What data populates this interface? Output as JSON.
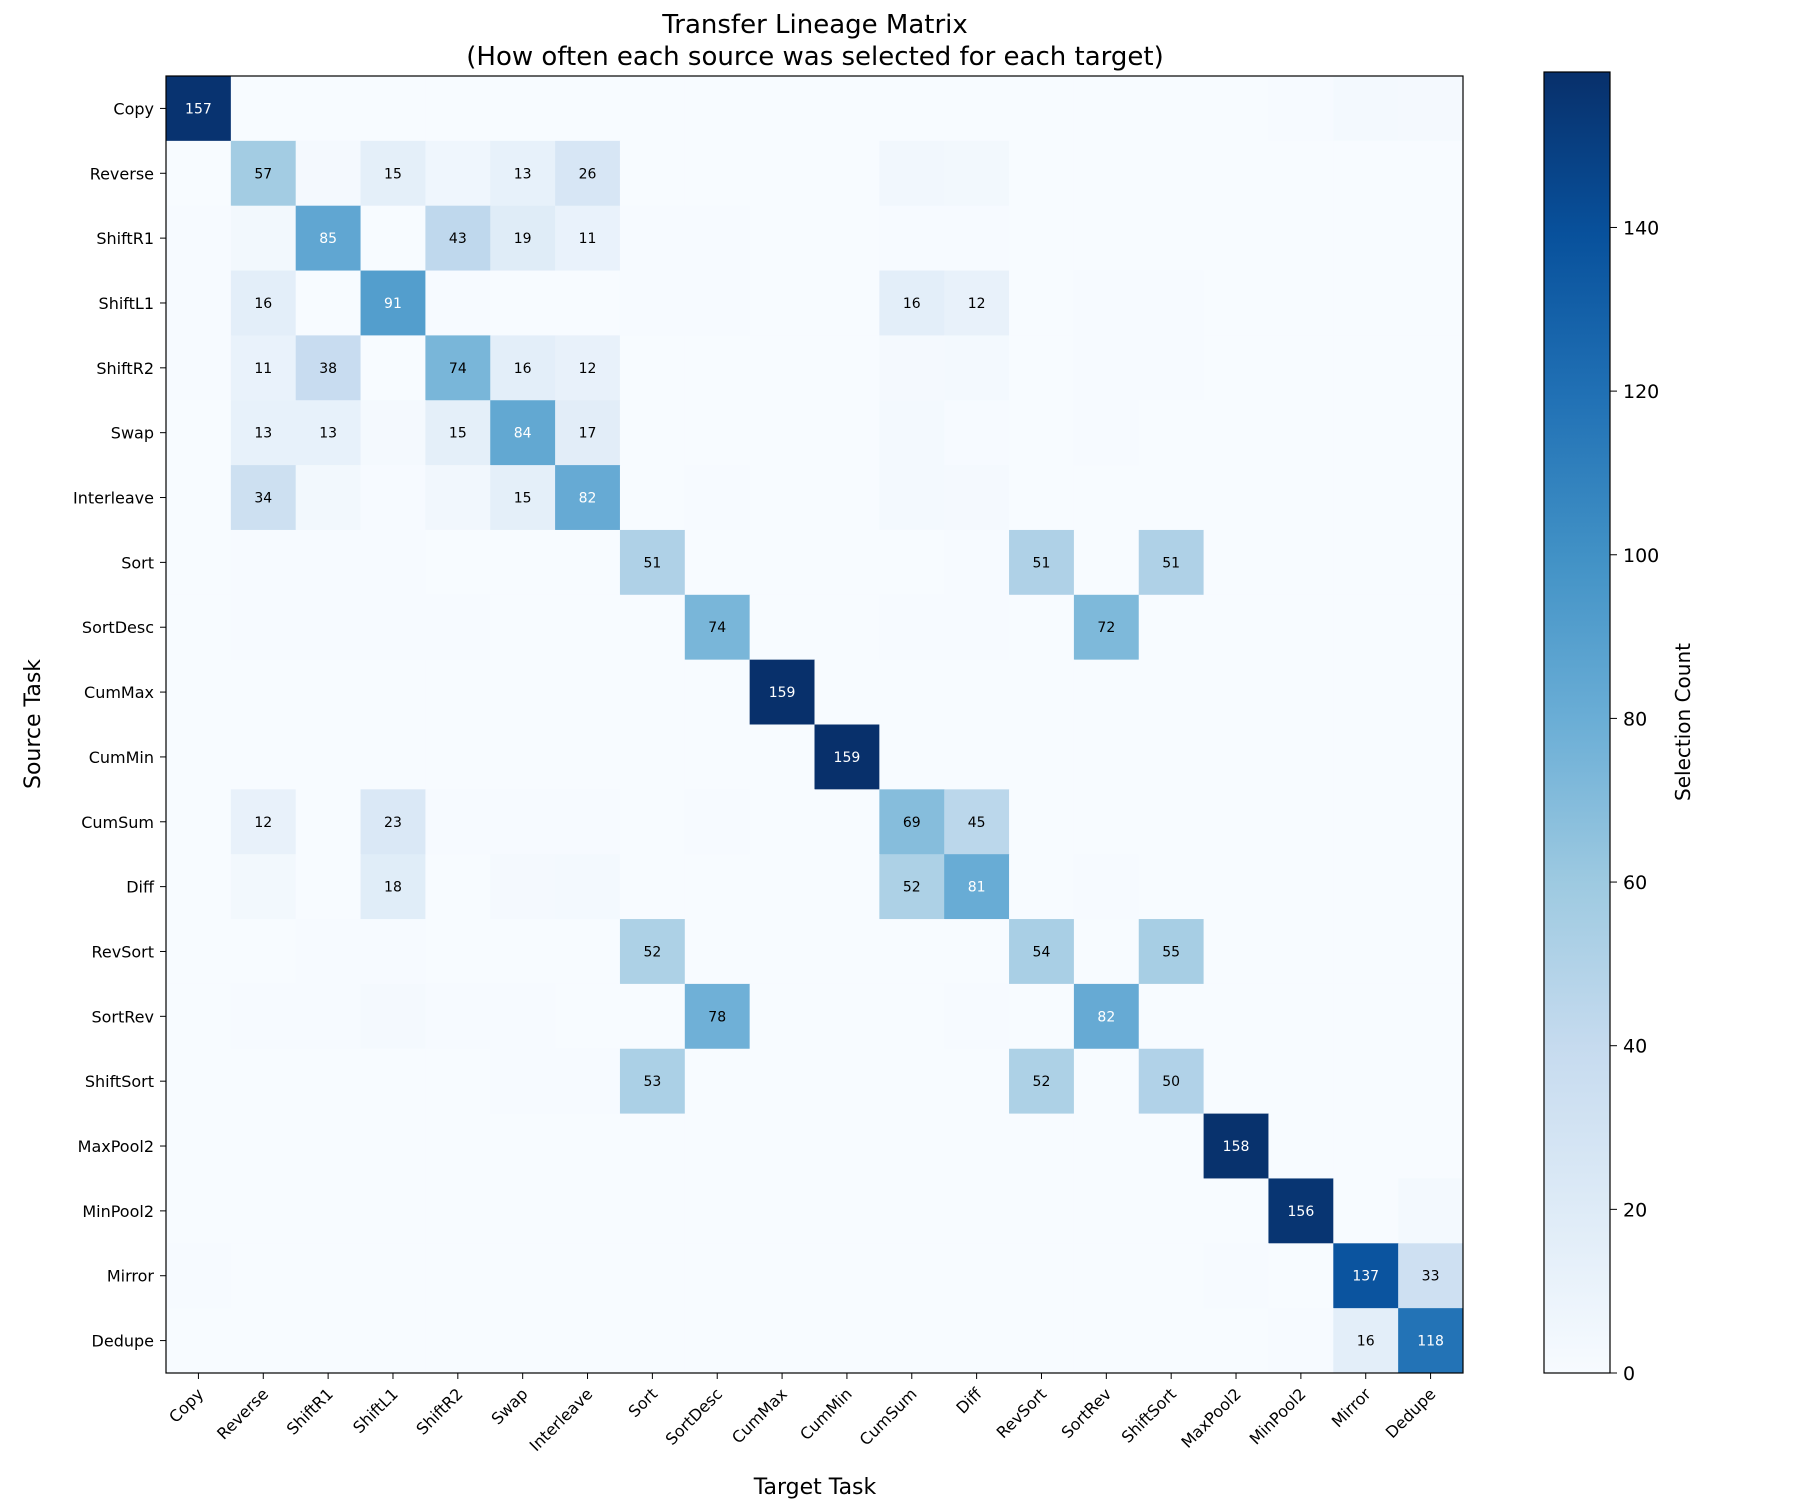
{
  "chart_data": {
    "type": "heatmap",
    "title": "Transfer Lineage Matrix",
    "subtitle": "(How often each source was selected for each target)",
    "xlabel": "Target Task",
    "ylabel": "Source Task",
    "colorbar_label": "Selection Count",
    "colormap": "Blues",
    "color_range": [
      0,
      159
    ],
    "colorbar_ticks": [
      0,
      20,
      40,
      60,
      80,
      100,
      120,
      140
    ],
    "annotation_min": 10,
    "x_categories": [
      "Copy",
      "Reverse",
      "ShiftR1",
      "ShiftL1",
      "ShiftR2",
      "Swap",
      "Interleave",
      "Sort",
      "SortDesc",
      "CumMax",
      "CumMin",
      "CumSum",
      "Diff",
      "RevSort",
      "SortRev",
      "ShiftSort",
      "MaxPool2",
      "MinPool2",
      "Mirror",
      "Dedupe"
    ],
    "y_categories": [
      "Copy",
      "Reverse",
      "ShiftR1",
      "ShiftL1",
      "ShiftR2",
      "Swap",
      "Interleave",
      "Sort",
      "SortDesc",
      "CumMax",
      "CumMin",
      "CumSum",
      "Diff",
      "RevSort",
      "SortRev",
      "ShiftSort",
      "MaxPool2",
      "MinPool2",
      "Mirror",
      "Dedupe"
    ],
    "values": [
      [
        157,
        0,
        0,
        0,
        0,
        0,
        0,
        0,
        0,
        0,
        0,
        0,
        0,
        0,
        0,
        0,
        0,
        1,
        3,
        2
      ],
      [
        0,
        57,
        2,
        15,
        6,
        13,
        26,
        0,
        0,
        0,
        0,
        5,
        4,
        0,
        0,
        0,
        0,
        0,
        0,
        0
      ],
      [
        1,
        4,
        85,
        0,
        43,
        19,
        11,
        1,
        1,
        0,
        0,
        1,
        1,
        0,
        0,
        0,
        0,
        0,
        0,
        0
      ],
      [
        1,
        16,
        0,
        91,
        1,
        0,
        0,
        1,
        1,
        0,
        0,
        16,
        12,
        0,
        1,
        1,
        0,
        0,
        0,
        0
      ],
      [
        1,
        11,
        38,
        0,
        74,
        16,
        12,
        0,
        0,
        0,
        0,
        2,
        3,
        0,
        1,
        1,
        0,
        0,
        0,
        0
      ],
      [
        0,
        13,
        13,
        2,
        15,
        84,
        17,
        0,
        0,
        0,
        0,
        3,
        1,
        0,
        1,
        0,
        0,
        0,
        0,
        0
      ],
      [
        0,
        34,
        4,
        1,
        5,
        15,
        82,
        0,
        1,
        0,
        0,
        3,
        2,
        0,
        0,
        0,
        0,
        0,
        0,
        0
      ],
      [
        0,
        1,
        1,
        1,
        0,
        0,
        0,
        51,
        0,
        0,
        0,
        0,
        1,
        51,
        0,
        51,
        0,
        0,
        0,
        0
      ],
      [
        0,
        1,
        1,
        1,
        1,
        0,
        0,
        0,
        74,
        0,
        0,
        1,
        1,
        0,
        72,
        0,
        0,
        0,
        0,
        0
      ],
      [
        0,
        0,
        0,
        0,
        0,
        0,
        0,
        0,
        0,
        159,
        0,
        0,
        0,
        0,
        0,
        0,
        0,
        0,
        0,
        0
      ],
      [
        0,
        0,
        0,
        0,
        0,
        0,
        0,
        0,
        0,
        0,
        159,
        0,
        0,
        0,
        0,
        0,
        0,
        0,
        0,
        0
      ],
      [
        0,
        12,
        0,
        23,
        1,
        1,
        1,
        0,
        1,
        0,
        0,
        69,
        45,
        0,
        0,
        0,
        0,
        0,
        0,
        0
      ],
      [
        0,
        4,
        0,
        18,
        0,
        2,
        3,
        0,
        0,
        0,
        0,
        52,
        81,
        0,
        1,
        0,
        0,
        0,
        0,
        0
      ],
      [
        0,
        0,
        1,
        1,
        0,
        0,
        0,
        52,
        0,
        0,
        0,
        0,
        0,
        54,
        0,
        55,
        0,
        0,
        0,
        0
      ],
      [
        0,
        1,
        1,
        2,
        1,
        1,
        0,
        0,
        78,
        0,
        0,
        0,
        1,
        0,
        82,
        0,
        0,
        0,
        0,
        0
      ],
      [
        0,
        0,
        0,
        0,
        0,
        1,
        1,
        53,
        0,
        0,
        0,
        0,
        0,
        52,
        0,
        50,
        0,
        0,
        0,
        0
      ],
      [
        0,
        0,
        0,
        0,
        0,
        0,
        0,
        0,
        0,
        0,
        0,
        0,
        0,
        0,
        0,
        0,
        158,
        0,
        0,
        0
      ],
      [
        0,
        0,
        0,
        0,
        0,
        0,
        0,
        0,
        0,
        0,
        0,
        0,
        0,
        0,
        0,
        0,
        0,
        156,
        0,
        3
      ],
      [
        1,
        0,
        0,
        0,
        0,
        0,
        0,
        0,
        0,
        0,
        0,
        0,
        0,
        0,
        0,
        0,
        1,
        0,
        137,
        33
      ],
      [
        0,
        0,
        0,
        0,
        0,
        0,
        0,
        0,
        0,
        0,
        0,
        0,
        0,
        0,
        0,
        0,
        0,
        1,
        16,
        118
      ]
    ],
    "grid": false
  }
}
